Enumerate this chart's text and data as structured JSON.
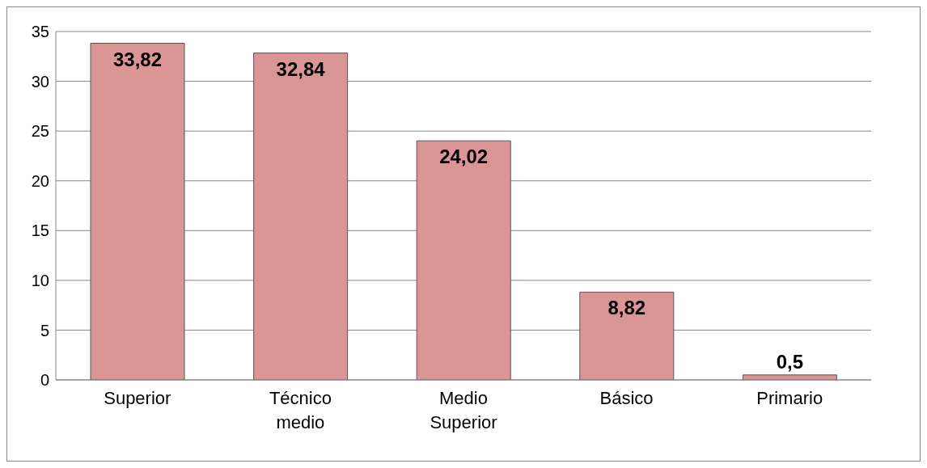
{
  "chart_data": {
    "type": "bar",
    "categories": [
      "Superior",
      "Técnico medio",
      "Medio Superior",
      "Básico",
      "Primario"
    ],
    "values": [
      33.82,
      32.84,
      24.02,
      8.82,
      0.5
    ],
    "value_labels": [
      "33,82",
      "32,84",
      "24,02",
      "8,82",
      "0,5"
    ],
    "color": "#d99694",
    "ylim": [
      0,
      35
    ],
    "yticks": [
      0,
      5,
      10,
      15,
      20,
      25,
      30,
      35
    ],
    "grid": "y"
  }
}
